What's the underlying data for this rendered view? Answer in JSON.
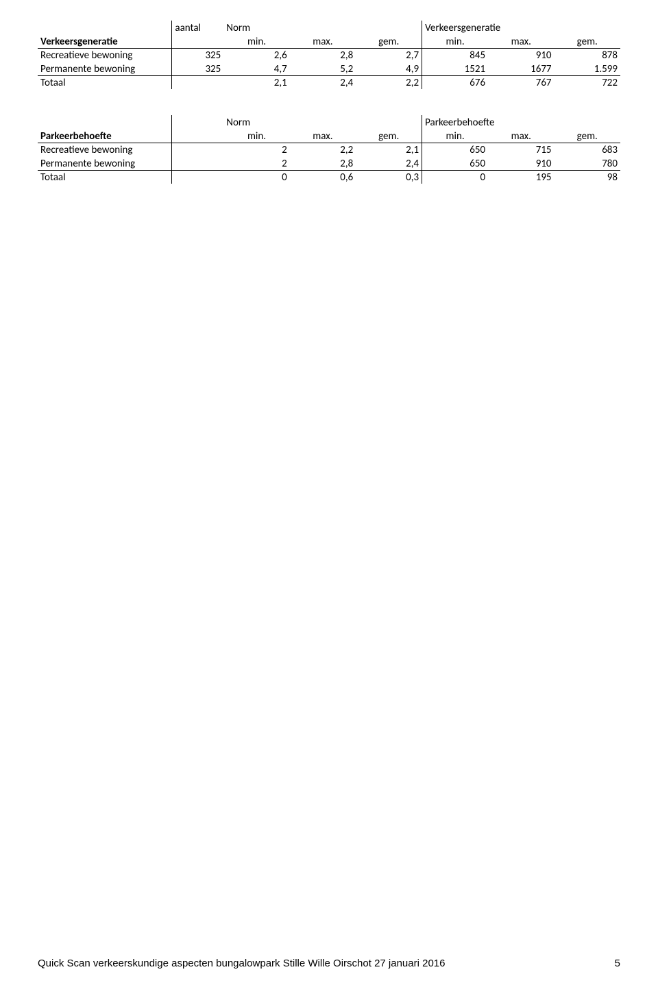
{
  "table1": {
    "superheader_aantal": "aantal",
    "superheader_norm": "Norm",
    "superheader_verkeer": "Verkeersgeneratie",
    "rowheader_label": "Verkeersgeneratie",
    "col_min": "min.",
    "col_max": "max.",
    "col_gem": "gem.",
    "rows": [
      {
        "label": "Recreatieve bewoning",
        "aantal": "325",
        "n_min": "2,6",
        "n_max": "2,8",
        "n_gem": "2,7",
        "v_min": "845",
        "v_max": "910",
        "v_gem": "878"
      },
      {
        "label": "Permanente bewoning",
        "aantal": "325",
        "n_min": "4,7",
        "n_max": "5,2",
        "n_gem": "4,9",
        "v_min": "1521",
        "v_max": "1677",
        "v_gem": "1.599"
      }
    ],
    "total": {
      "label": "Totaal",
      "aantal": "",
      "n_min": "2,1",
      "n_max": "2,4",
      "n_gem": "2,2",
      "v_min": "676",
      "v_max": "767",
      "v_gem": "722"
    }
  },
  "table2": {
    "superheader_norm": "Norm",
    "superheader_parkeer": "Parkeerbehoefte",
    "rowheader_label": "Parkeerbehoefte",
    "col_min": "min.",
    "col_max": "max.",
    "col_gem": "gem.",
    "rows": [
      {
        "label": "Recreatieve bewoning",
        "n_min": "2",
        "n_max": "2,2",
        "n_gem": "2,1",
        "p_min": "650",
        "p_max": "715",
        "p_gem": "683"
      },
      {
        "label": "Permanente bewoning",
        "n_min": "2",
        "n_max": "2,8",
        "n_gem": "2,4",
        "p_min": "650",
        "p_max": "910",
        "p_gem": "780"
      }
    ],
    "total": {
      "label": "Totaal",
      "n_min": "0",
      "n_max": "0,6",
      "n_gem": "0,3",
      "p_min": "0",
      "p_max": "195",
      "p_gem": "98"
    }
  },
  "footer": {
    "text": "Quick Scan verkeerskundige aspecten bungalowpark Stille Wille Oirschot 27 januari 2016",
    "page": "5"
  }
}
